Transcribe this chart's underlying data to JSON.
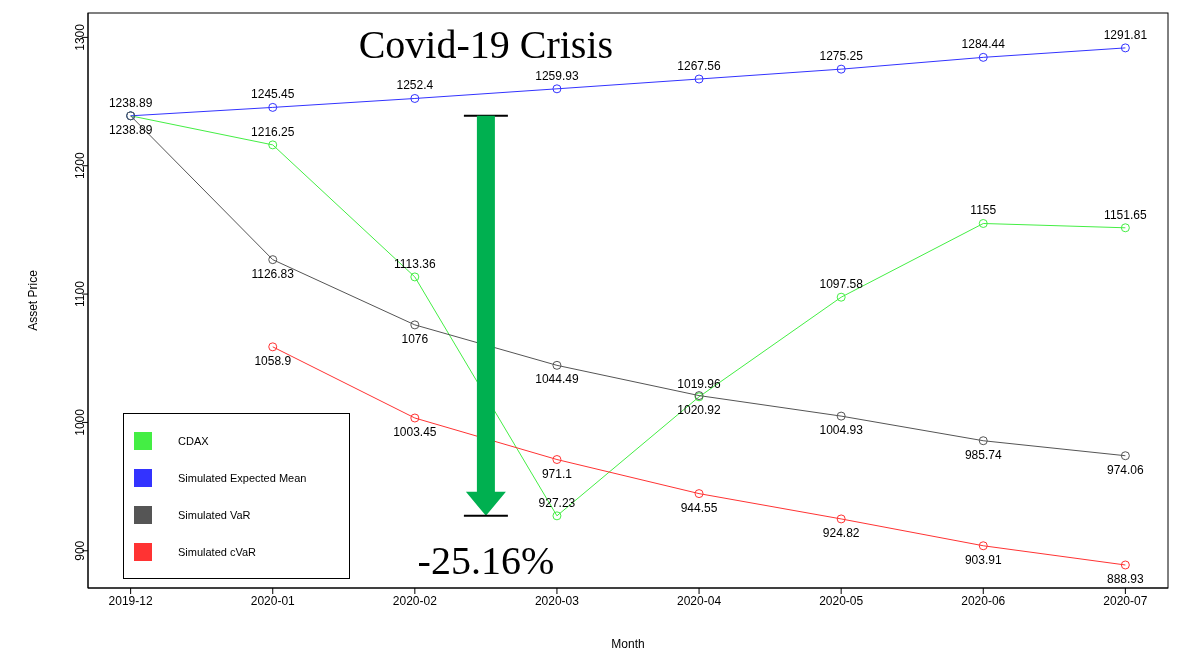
{
  "chart_data": {
    "type": "line",
    "xlabel": "Month",
    "ylabel": "Asset Price",
    "annotations": [
      "Covid-19 Crisis",
      "-25.16%"
    ],
    "categories": [
      "2019-12",
      "2020-01",
      "2020-02",
      "2020-03",
      "2020-04",
      "2020-05",
      "2020-06",
      "2020-07"
    ],
    "series": [
      {
        "name": "CDAX",
        "color": "#44ee44",
        "values": [
          1238.89,
          1216.25,
          1113.36,
          927.23,
          1019.96,
          1097.58,
          1155,
          1151.65
        ],
        "value_labels": [
          null,
          "1216.25",
          "1113.36",
          "927.23",
          "1019.96",
          "1097.58",
          "1155",
          "1151.65"
        ]
      },
      {
        "name": "Simulated Expected Mean",
        "color": "#3333ff",
        "values": [
          1238.89,
          1245.45,
          1252.4,
          1259.93,
          1267.56,
          1275.25,
          1284.44,
          1291.81
        ]
      },
      {
        "name": "Simulated VaR",
        "color": "#555555",
        "values": [
          1238.89,
          1126.83,
          1076,
          1044.49,
          1020.92,
          1004.93,
          985.74,
          974.06
        ]
      },
      {
        "name": "Simulated cVaR",
        "color": "#ff3333",
        "values": [
          null,
          1058.9,
          1003.45,
          971.1,
          944.55,
          924.82,
          903.91,
          888.93
        ]
      }
    ],
    "ylim": [
      871,
      1319
    ],
    "yticks": [
      900,
      1000,
      1100,
      1200,
      1300
    ],
    "grid": false,
    "legend": "bottom left",
    "marker": "circle",
    "line_style": "solid",
    "data_labels": true
  }
}
